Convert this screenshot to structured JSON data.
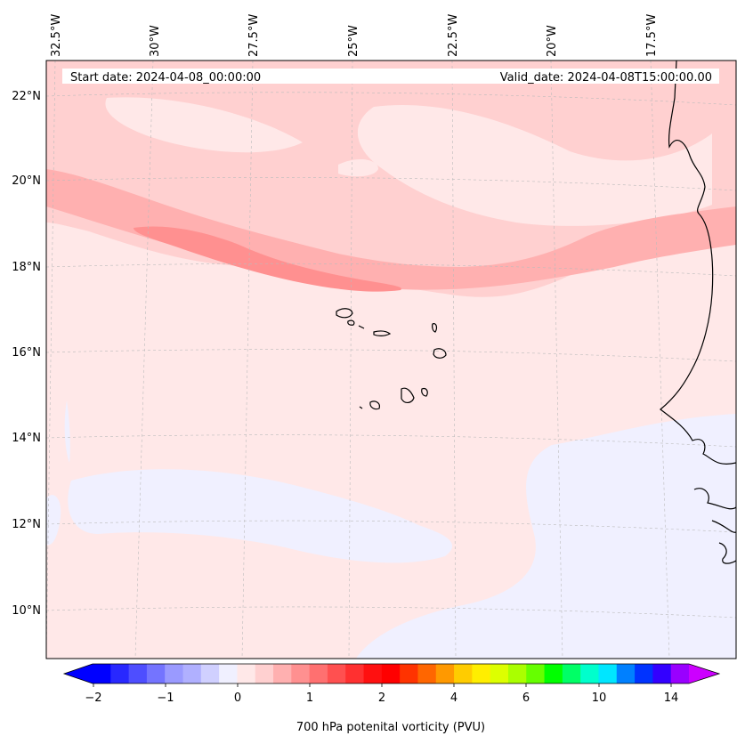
{
  "map": {
    "start_date": "Start date: 2024-04-08_00:00:00",
    "valid_date": "Valid_date: 2024-04-08T15:00:00.00",
    "longitude_labels": [
      "32.5°W",
      "30°W",
      "27.5°W",
      "25°W",
      "22.5°W",
      "20°W",
      "17.5°W"
    ],
    "latitude_labels": [
      "22°N",
      "20°N",
      "18°N",
      "16°N",
      "14°N",
      "12°N",
      "10°N"
    ],
    "region": "Cape Verde Islands and West African coast (Senegal)"
  },
  "colorbar": {
    "label": "700 hPa potenital vorticity (PVU)",
    "tick_labels": [
      "−2",
      "−1",
      "0",
      "1",
      "2",
      "4",
      "6",
      "10",
      "14"
    ],
    "colors": [
      "#0000ff",
      "#2828ff",
      "#4e4eff",
      "#7474ff",
      "#9a9aff",
      "#b0b0ff",
      "#d0d0ff",
      "#f0f0ff",
      "#ffe8e8",
      "#ffd0d0",
      "#ffb0b0",
      "#ff9090",
      "#ff7070",
      "#ff5050",
      "#ff3030",
      "#ff1010",
      "#ff0000",
      "#ff3300",
      "#ff6600",
      "#ff9900",
      "#ffcc00",
      "#ffee00",
      "#ddff00",
      "#aaff00",
      "#66ff00",
      "#00ff00",
      "#00ff66",
      "#00ffcc",
      "#00e6ff",
      "#0080ff",
      "#0033ff",
      "#3300ff",
      "#9900ff"
    ],
    "extend_min_color": "#0000ff",
    "extend_max_color": "#cc00ff"
  }
}
